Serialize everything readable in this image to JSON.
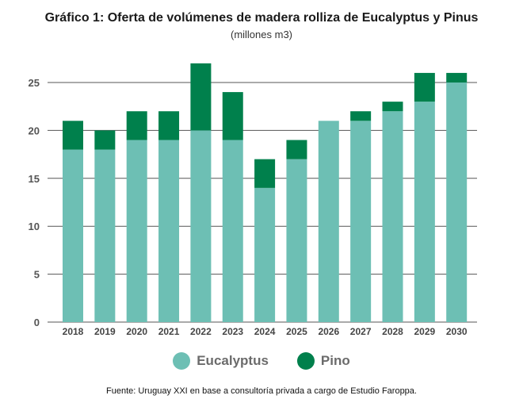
{
  "chart_data": {
    "type": "bar",
    "stacked": true,
    "title": "Gráfico 1: Oferta de volúmenes de madera rolliza de Eucalyptus y Pinus",
    "subtitle": "(millones m3)",
    "categories": [
      "2018",
      "2019",
      "2020",
      "2021",
      "2022",
      "2023",
      "2024",
      "2025",
      "2026",
      "2027",
      "2028",
      "2029",
      "2030"
    ],
    "series": [
      {
        "name": "Eucalyptus",
        "color": "#6dbfb4",
        "values": [
          18,
          18,
          19,
          19,
          20,
          19,
          14,
          17,
          21,
          21,
          22,
          23,
          25
        ]
      },
      {
        "name": "Pino",
        "color": "#00804c",
        "values": [
          3,
          2,
          3,
          3,
          7,
          5,
          3,
          2,
          0,
          1,
          1,
          3,
          1
        ]
      }
    ],
    "ylim": [
      0,
      27
    ],
    "yticks": [
      0,
      5,
      10,
      15,
      20,
      25
    ],
    "grid": true,
    "legend": "bottom",
    "source": "Fuente: Uruguay XXI en base a consultoría privada a cargo de Estudio Faroppa."
  }
}
